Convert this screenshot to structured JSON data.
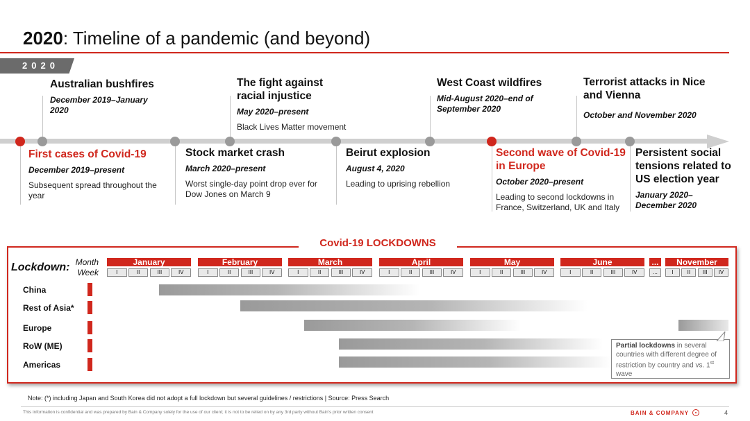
{
  "header": {
    "title_bold": "2020",
    "title_rest": ": Timeline of a pandemic (and beyond)",
    "year_tab": "2020"
  },
  "events_top": [
    {
      "title": "Australian bushfires",
      "date": "December 2019–January 2020",
      "desc": ""
    },
    {
      "title": "The fight against racial injustice",
      "date": "May 2020–present",
      "desc": "Black Lives Matter movement"
    },
    {
      "title": "West Coast wildfires",
      "date": "Mid-August 2020–end of September 2020",
      "desc": ""
    },
    {
      "title": "Terrorist attacks in Nice and Vienna",
      "date": "October and November 2020",
      "desc": ""
    }
  ],
  "events_bottom": [
    {
      "title": "First cases of Covid-19",
      "date": "December 2019–present",
      "desc": "Subsequent spread throughout the year",
      "highlight": true
    },
    {
      "title": "Stock market crash",
      "date": "March 2020–present",
      "desc": "Worst single-day point drop ever for Dow Jones on March 9",
      "highlight": false
    },
    {
      "title": "Beirut explosion",
      "date": "August 4, 2020",
      "desc": "Leading to uprising rebellion",
      "highlight": false
    },
    {
      "title": "Second wave of Covid-19 in Europe",
      "date": "October 2020–present",
      "desc": "Leading to second lockdowns in France, Switzerland, UK and Italy",
      "highlight": true
    },
    {
      "title": "Persistent social tensions related to US election year",
      "date": "January 2020–December 2020",
      "desc": "",
      "highlight": false
    }
  ],
  "lockdowns": {
    "title": "Covid-19 LOCKDOWNS",
    "label": "Lockdown:",
    "month_label": "Month",
    "week_label": "Week",
    "months": [
      "January",
      "February",
      "March",
      "April",
      "May",
      "June",
      "...",
      "November"
    ],
    "weeks": [
      "I",
      "II",
      "III",
      "IV"
    ],
    "gap_week": "...",
    "regions": [
      "China",
      "Rest of Asia*",
      "Europe",
      "RoW (ME)",
      "Americas"
    ],
    "callout_bold": "Partial lockdowns",
    "callout_rest": " in several countries with different degree of restriction by country and vs. 1",
    "callout_sup": "st",
    "callout_end": " wave"
  },
  "footer": {
    "note": "Note: (*) including Japan and South Korea did not adopt a full lockdown but several guidelines / restrictions | Source: Press Search",
    "disclaimer": "This information is confidential and was prepared by Bain & Company solely for the use of our client; it is not to be relied on by any 3rd party without Bain's prior written consent",
    "brand": "BAIN & COMPANY",
    "page": "4"
  },
  "colors": {
    "accent": "#d0271d",
    "axis": "#cfcfcf",
    "dot": "#9a9a9a",
    "bar": "#a0a0a0"
  }
}
